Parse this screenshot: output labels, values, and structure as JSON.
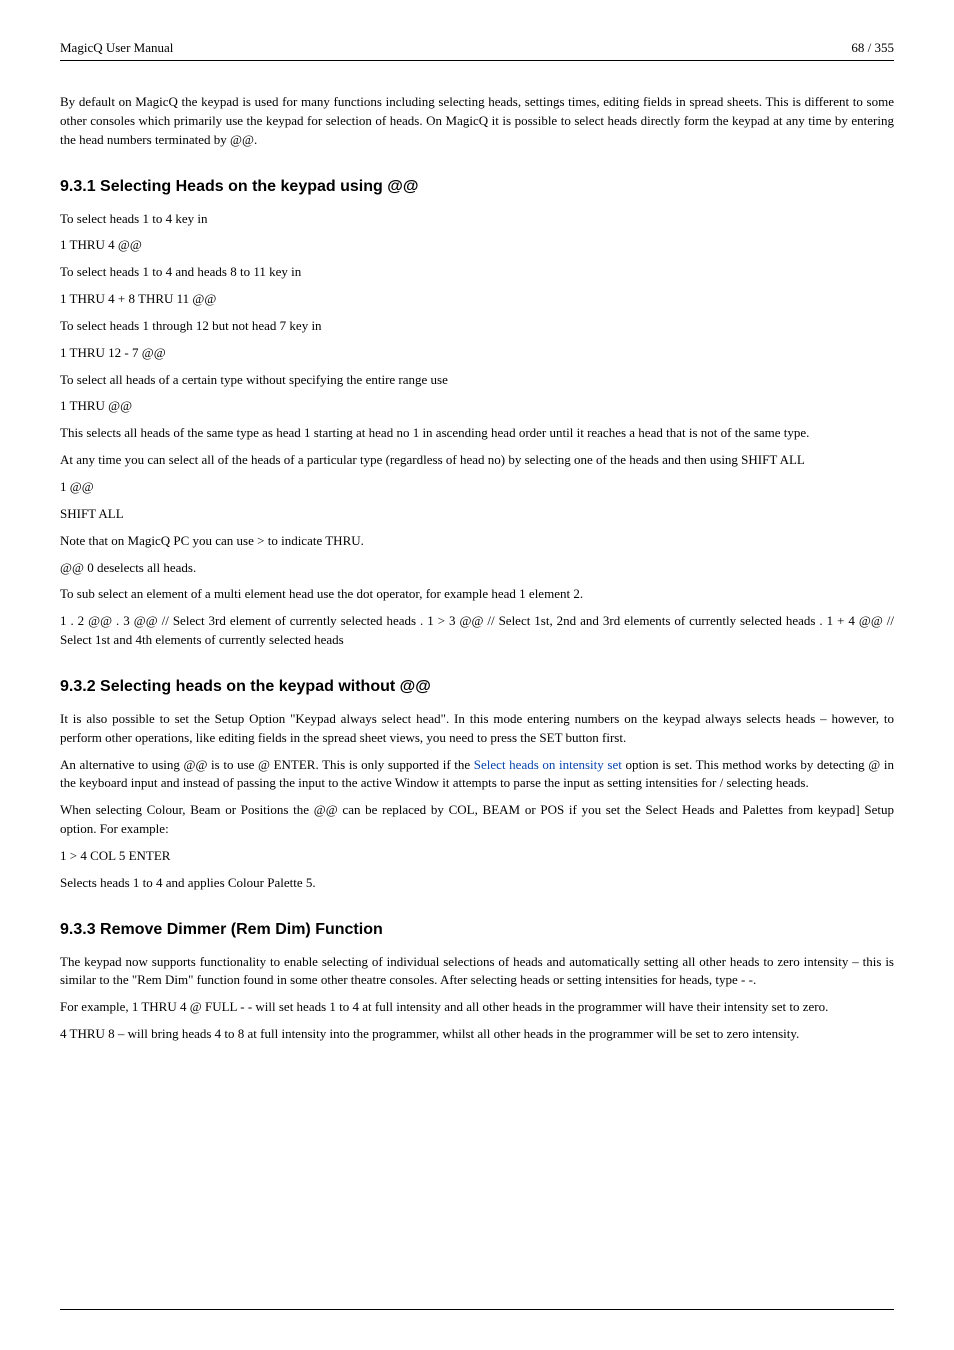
{
  "header": {
    "title": "MagicQ User Manual",
    "page_indicator": "68 / 355"
  },
  "intro": {
    "p1": "By default on MagicQ the keypad is used for many functions including selecting heads, settings times, editing fields in spread sheets. This is different to some other consoles which primarily use the keypad for selection of heads. On MagicQ it is possible to select heads directly form the keypad at any time by entering the head numbers terminated by @@."
  },
  "s931": {
    "title": "9.3.1   Selecting Heads on the keypad using @@",
    "p1": "To select heads 1 to 4 key in",
    "p2": "1 THRU 4 @@",
    "p3": "To select heads 1 to 4 and heads 8 to 11 key in",
    "p4": "1 THRU 4 + 8 THRU 11 @@",
    "p5": "To select heads 1 through 12 but not head 7 key in",
    "p6": "1 THRU 12 - 7 @@",
    "p7": "To select all heads of a certain type without specifying the entire range use",
    "p8": "1 THRU @@",
    "p9": "This selects all heads of the same type as head 1 starting at head no 1 in ascending head order until it reaches a head that is not of the same type.",
    "p10": "At any time you can select all of the heads of a particular type (regardless of head no) by selecting one of the heads and then using SHIFT ALL",
    "p11": "1 @@",
    "p12": "SHIFT ALL",
    "p13": "Note that on MagicQ PC you can use > to indicate THRU.",
    "p14": "@@ 0 deselects all heads.",
    "p15": "To sub select an element of a multi element head use the dot operator, for example head 1 element 2.",
    "p16": "1 . 2 @@ . 3 @@ // Select 3rd element of currently selected heads . 1 > 3 @@ // Select 1st, 2nd and 3rd elements of currently selected heads . 1 + 4 @@ // Select 1st and 4th elements of currently selected heads"
  },
  "s932": {
    "title": "9.3.2   Selecting heads on the keypad without @@",
    "p1": "It is also possible to set the Setup Option \"Keypad always select head\". In this mode entering numbers on the keypad always selects heads – however, to perform other operations, like editing fields in the spread sheet views, you need to press the SET button first.",
    "p2a": "An alternative to using @@ is to use @ ENTER. This is only supported if the ",
    "p2link": "Select heads on intensity set",
    "p2b": " option is set. This method works by detecting @ in the keyboard input and instead of passing the input to the active Window it attempts to parse the input as setting intensities for / selecting heads.",
    "p3": "When selecting Colour, Beam or Positions the @@ can be replaced by COL, BEAM or POS if you set the Select Heads and Palettes from keypad] Setup option. For example:",
    "p4": "1 > 4 COL 5 ENTER",
    "p5": "Selects heads 1 to 4 and applies Colour Palette 5."
  },
  "s933": {
    "title": "9.3.3   Remove Dimmer (Rem Dim) Function",
    "p1": "The keypad now supports functionality to enable selecting of individual selections of heads and automatically setting all other heads to zero intensity – this is similar to the \"Rem Dim\" function found in some other theatre consoles. After selecting heads or setting intensities for heads, type - -.",
    "p2": "For example, 1 THRU 4 @ FULL - - will set heads 1 to 4 at full intensity and all other heads in the programmer will have their intensity set to zero.",
    "p3": "4 THRU 8 – will bring heads 4 to 8 at full intensity into the programmer, whilst all other heads in the programmer will be set to zero intensity."
  }
}
